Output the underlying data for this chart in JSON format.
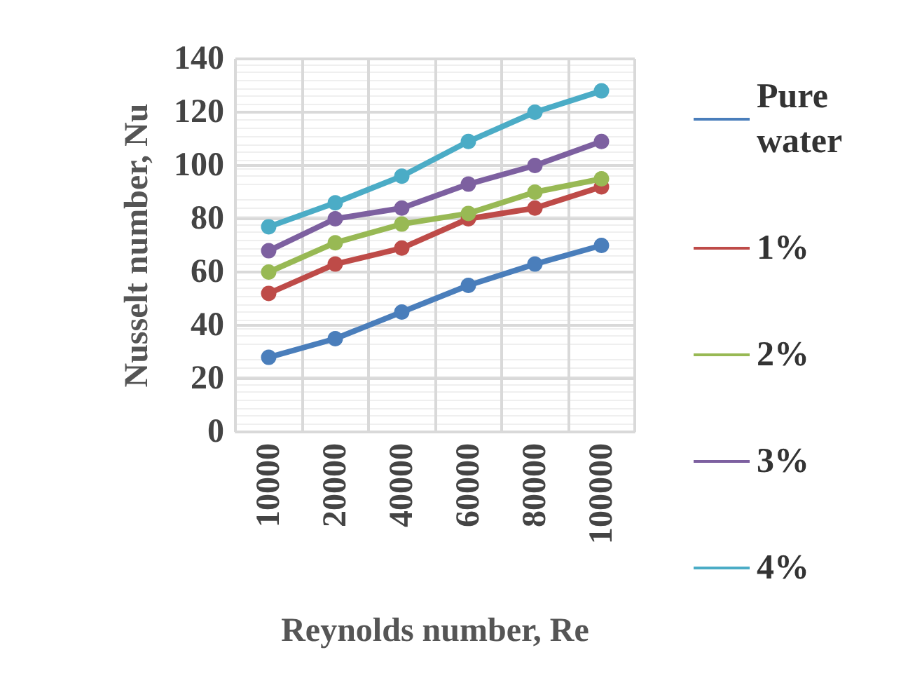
{
  "chart_data": {
    "type": "line",
    "xlabel": "Reynolds number, Re",
    "ylabel": "Nusselt number, Nu",
    "categories": [
      "10000",
      "20000",
      "40000",
      "60000",
      "80000",
      "100000"
    ],
    "series": [
      {
        "name": "Pure water",
        "color": "#4a7ebb",
        "values": [
          28,
          35,
          45,
          55,
          63,
          70
        ]
      },
      {
        "name": "1%",
        "color": "#be4b48",
        "values": [
          52,
          63,
          69,
          80,
          84,
          92
        ]
      },
      {
        "name": "2%",
        "color": "#98b954",
        "values": [
          60,
          71,
          78,
          82,
          90,
          95
        ]
      },
      {
        "name": "3%",
        "color": "#7d60a0",
        "values": [
          68,
          80,
          84,
          93,
          100,
          109
        ]
      },
      {
        "name": "4%",
        "color": "#4bacc6",
        "values": [
          77,
          86,
          96,
          109,
          120,
          128
        ]
      }
    ],
    "ylim": [
      0,
      140
    ],
    "yticks": [
      0,
      20,
      40,
      60,
      80,
      100,
      120,
      140
    ],
    "grid": true,
    "legend": "right",
    "marker": "circle",
    "line_style": "solid"
  }
}
